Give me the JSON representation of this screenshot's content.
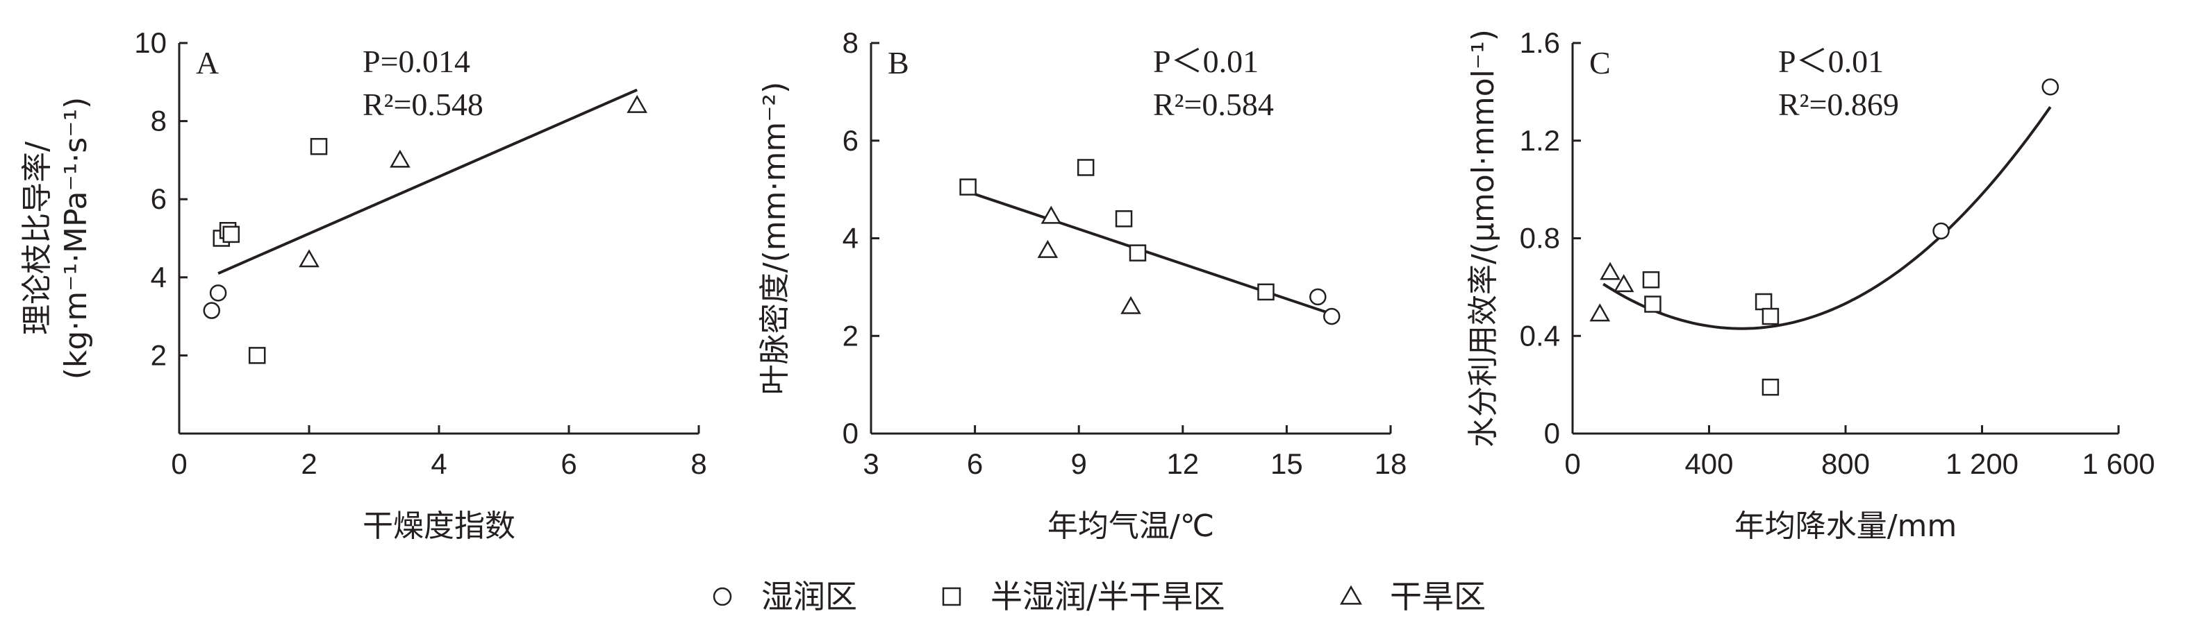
{
  "chart_data": [
    {
      "type": "scatter",
      "panel": "A",
      "xlabel": "干燥度指数",
      "ylabel_lines": [
        "理论枝比导率/",
        "(kg·m⁻¹·MPa⁻¹·s⁻¹)"
      ],
      "xlim": [
        0,
        8
      ],
      "ylim": [
        0,
        10
      ],
      "xticks": [
        0,
        2,
        4,
        6,
        8
      ],
      "yticks": [
        2,
        4,
        6,
        8,
        10
      ],
      "stats": [
        "P=0.014",
        "R²=0.548"
      ],
      "fit": {
        "kind": "linear",
        "x": [
          0.6,
          7.05
        ],
        "y": [
          4.1,
          8.8
        ]
      },
      "series": [
        {
          "name": "湿润区",
          "marker": "circle",
          "points": [
            [
              0.5,
              3.15
            ],
            [
              0.6,
              3.6
            ]
          ]
        },
        {
          "name": "半湿润/半干旱区",
          "marker": "square",
          "points": [
            [
              0.65,
              5.0
            ],
            [
              0.75,
              5.2
            ],
            [
              0.8,
              5.1
            ],
            [
              1.2,
              2.0
            ],
            [
              2.15,
              7.35
            ]
          ]
        },
        {
          "name": "干旱区",
          "marker": "triangle",
          "points": [
            [
              2.0,
              4.45
            ],
            [
              3.4,
              7.0
            ],
            [
              7.05,
              8.4
            ]
          ]
        }
      ]
    },
    {
      "type": "scatter",
      "panel": "B",
      "xlabel": "年均气温/℃",
      "ylabel_lines": [
        "叶脉密度/(mm·mm⁻²)"
      ],
      "xlim": [
        3,
        18
      ],
      "ylim": [
        0,
        8
      ],
      "xticks": [
        3,
        6,
        9,
        12,
        15,
        18
      ],
      "yticks": [
        0,
        2,
        4,
        6,
        8
      ],
      "stats": [
        "P＜0.01",
        "R²=0.584"
      ],
      "fit": {
        "kind": "linear",
        "x": [
          5.8,
          16.3
        ],
        "y": [
          4.95,
          2.45
        ]
      },
      "series": [
        {
          "name": "湿润区",
          "marker": "circle",
          "points": [
            [
              15.9,
              2.8
            ],
            [
              16.3,
              2.4
            ]
          ]
        },
        {
          "name": "半湿润/半干旱区",
          "marker": "square",
          "points": [
            [
              5.8,
              5.05
            ],
            [
              9.2,
              5.45
            ],
            [
              10.3,
              4.4
            ],
            [
              10.7,
              3.7
            ],
            [
              14.4,
              2.9
            ]
          ]
        },
        {
          "name": "干旱区",
          "marker": "triangle",
          "points": [
            [
              8.2,
              4.45
            ],
            [
              8.1,
              3.75
            ],
            [
              10.5,
              2.6
            ]
          ]
        }
      ]
    },
    {
      "type": "scatter",
      "panel": "C",
      "xlabel": "年均降水量/mm",
      "ylabel_lines": [
        "水分利用效率/(μmol·mmol⁻¹)"
      ],
      "xlim": [
        0,
        1600
      ],
      "ylim": [
        0,
        1.6
      ],
      "xticks": [
        0,
        400,
        800,
        1200,
        1600
      ],
      "xtick_labels": [
        "0",
        "400",
        "800",
        "1 200",
        "1 600"
      ],
      "yticks": [
        0,
        0.4,
        0.8,
        1.2,
        1.6
      ],
      "ytick_labels": [
        "0",
        "0.4",
        "0.8",
        "1.2",
        "1.6"
      ],
      "stats": [
        "P＜0.01",
        "R²=0.869"
      ],
      "fit": {
        "kind": "quadratic",
        "coef": [
          0.7025,
          -0.0011,
          1.11e-06
        ],
        "xrange": [
          90,
          1400
        ]
      },
      "series": [
        {
          "name": "湿润区",
          "marker": "circle",
          "points": [
            [
              1080,
              0.83
            ],
            [
              1400,
              1.42
            ]
          ]
        },
        {
          "name": "半湿润/半干旱区",
          "marker": "square",
          "points": [
            [
              230,
              0.63
            ],
            [
              235,
              0.53
            ],
            [
              560,
              0.54
            ],
            [
              580,
              0.48
            ],
            [
              580,
              0.19
            ]
          ]
        },
        {
          "name": "干旱区",
          "marker": "triangle",
          "points": [
            [
              80,
              0.49
            ],
            [
              110,
              0.66
            ],
            [
              150,
              0.61
            ]
          ]
        }
      ]
    }
  ],
  "legend": [
    {
      "marker": "circle",
      "label": "湿润区"
    },
    {
      "marker": "square",
      "label": "半湿润/半干旱区"
    },
    {
      "marker": "triangle",
      "label": "干旱区"
    }
  ]
}
